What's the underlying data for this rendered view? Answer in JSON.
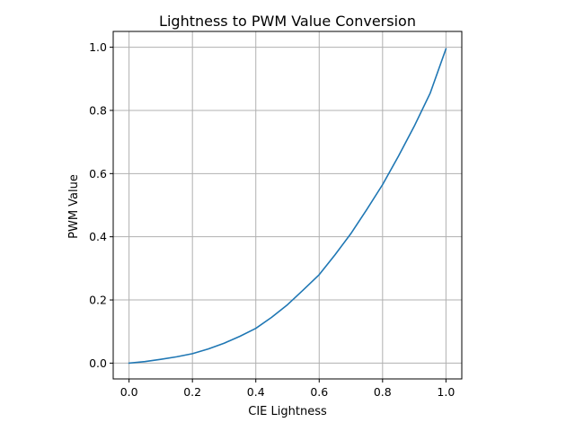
{
  "chart_data": {
    "type": "line",
    "title": "Lightness to PWM Value Conversion",
    "xlabel": "CIE Lightness",
    "ylabel": "PWM Value",
    "xlim": [
      -0.05,
      1.05
    ],
    "ylim": [
      -0.05,
      1.05
    ],
    "xticks": [
      0.0,
      0.2,
      0.4,
      0.6,
      0.8,
      1.0
    ],
    "yticks": [
      0.0,
      0.2,
      0.4,
      0.6,
      0.8,
      1.0
    ],
    "xtick_labels": [
      "0.0",
      "0.2",
      "0.4",
      "0.6",
      "0.8",
      "1.0"
    ],
    "ytick_labels": [
      "0.0",
      "0.2",
      "0.4",
      "0.6",
      "0.8",
      "1.0"
    ],
    "grid": true,
    "series": [
      {
        "color": "#1f77b4",
        "x": [
          0.0,
          0.05,
          0.1,
          0.15,
          0.2,
          0.25,
          0.3,
          0.35,
          0.4,
          0.45,
          0.5,
          0.55,
          0.6,
          0.65,
          0.7,
          0.75,
          0.8,
          0.85,
          0.9,
          0.95,
          1.0
        ],
        "y": [
          0.0,
          0.005,
          0.012,
          0.02,
          0.03,
          0.045,
          0.063,
          0.085,
          0.11,
          0.145,
          0.185,
          0.232,
          0.28,
          0.343,
          0.41,
          0.486,
          0.565,
          0.655,
          0.75,
          0.854,
          0.995
        ]
      }
    ]
  }
}
